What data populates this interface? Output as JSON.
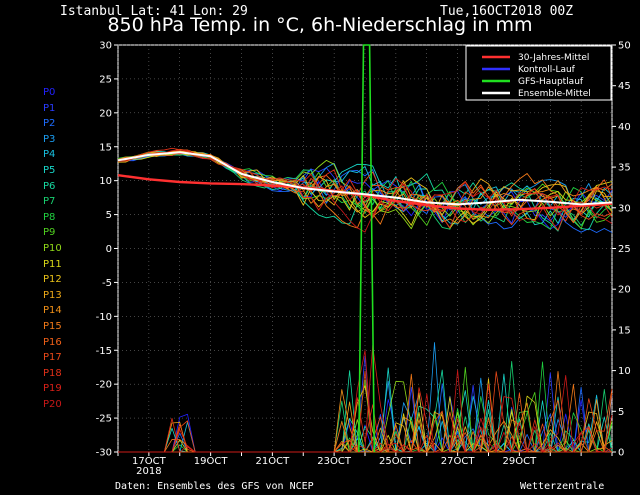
{
  "header": {
    "location": "Istanbul  Lat: 41 Lon: 29",
    "date": "Tue,16OCT2018 00Z",
    "title": "850 hPa Temp. in °C, 6h-Niederschlag in mm"
  },
  "members": [
    {
      "label": "P0",
      "color": "#2222ff"
    },
    {
      "label": "P1",
      "color": "#2a3cff"
    },
    {
      "label": "P2",
      "color": "#1e6cff"
    },
    {
      "label": "P3",
      "color": "#1a9cf0"
    },
    {
      "label": "P4",
      "color": "#18c0e0"
    },
    {
      "label": "P5",
      "color": "#18d6c8"
    },
    {
      "label": "P6",
      "color": "#16d8a0"
    },
    {
      "label": "P7",
      "color": "#18d070"
    },
    {
      "label": "P8",
      "color": "#20d040"
    },
    {
      "label": "P9",
      "color": "#50d020"
    },
    {
      "label": "P10",
      "color": "#90d818"
    },
    {
      "label": "P11",
      "color": "#d8d818"
    },
    {
      "label": "P12",
      "color": "#e8c018"
    },
    {
      "label": "P13",
      "color": "#eca818"
    },
    {
      "label": "P14",
      "color": "#f09018"
    },
    {
      "label": "P15",
      "color": "#f07818"
    },
    {
      "label": "P16",
      "color": "#f06018"
    },
    {
      "label": "P17",
      "color": "#e84818"
    },
    {
      "label": "P18",
      "color": "#e03018"
    },
    {
      "label": "P19",
      "color": "#d82018"
    },
    {
      "label": "P20",
      "color": "#c81818"
    }
  ],
  "footer": {
    "source": "Daten: Ensembles des GFS von NCEP",
    "brand": "Wetterzentrale"
  },
  "chart_data": {
    "type": "line",
    "y_left": {
      "range": [
        -30,
        30
      ],
      "ticks": [
        "30",
        "25",
        "20",
        "15",
        "10",
        "5",
        "0",
        "-5",
        "-10",
        "-15",
        "-20",
        "-25",
        "-30"
      ]
    },
    "y_right": {
      "range": [
        0,
        50
      ],
      "ticks": [
        "50",
        "45",
        "40",
        "35",
        "30",
        "25",
        "20",
        "15",
        "10",
        "5",
        "0"
      ]
    },
    "x_range_days": [
      16,
      32
    ],
    "x_ticks": [
      {
        "day": 17,
        "label": "17OCT",
        "sub": "2018"
      },
      {
        "day": 19,
        "label": "19OCT",
        "sub": ""
      },
      {
        "day": 21,
        "label": "21OCT",
        "sub": ""
      },
      {
        "day": 23,
        "label": "23OCT",
        "sub": ""
      },
      {
        "day": 25,
        "label": "25OCT",
        "sub": ""
      },
      {
        "day": 27,
        "label": "27OCT",
        "sub": ""
      },
      {
        "day": 29,
        "label": "29OCT",
        "sub": ""
      }
    ],
    "legend": [
      {
        "name": "30-Jahres-Mittel",
        "color": "#ff3030"
      },
      {
        "name": "Kontroll-Lauf",
        "color": "#3030ff"
      },
      {
        "name": "GFS-Hauptlauf",
        "color": "#20e020"
      },
      {
        "name": "Ensemble-Mittel",
        "color": "#ffffff"
      }
    ],
    "legend_position": "top-right",
    "climate_mean": {
      "x": [
        16,
        17,
        18,
        19,
        20,
        21,
        22,
        23,
        24,
        25,
        26,
        27,
        28,
        29,
        30,
        31,
        32
      ],
      "y": [
        10.8,
        10.2,
        9.8,
        9.6,
        9.5,
        9.3,
        9.0,
        8.5,
        7.8,
        7.0,
        6.4,
        5.9,
        5.7,
        5.8,
        6.0,
        6.3,
        6.6
      ]
    },
    "ensemble_mean": {
      "x": [
        16,
        17,
        18,
        19,
        20,
        21,
        22,
        23,
        24,
        25,
        26,
        27,
        28,
        29,
        30,
        31,
        32
      ],
      "y": [
        13.0,
        13.8,
        14.2,
        13.6,
        11.0,
        9.8,
        8.9,
        8.4,
        8.0,
        7.5,
        6.8,
        6.5,
        6.8,
        7.2,
        6.9,
        6.5,
        6.8
      ]
    },
    "gfs_main_spike": {
      "x": [
        16,
        23.8,
        23.95,
        24.15,
        24.3,
        32
      ],
      "y": [
        null,
        -30,
        30,
        30,
        -30,
        null
      ]
    }
  }
}
